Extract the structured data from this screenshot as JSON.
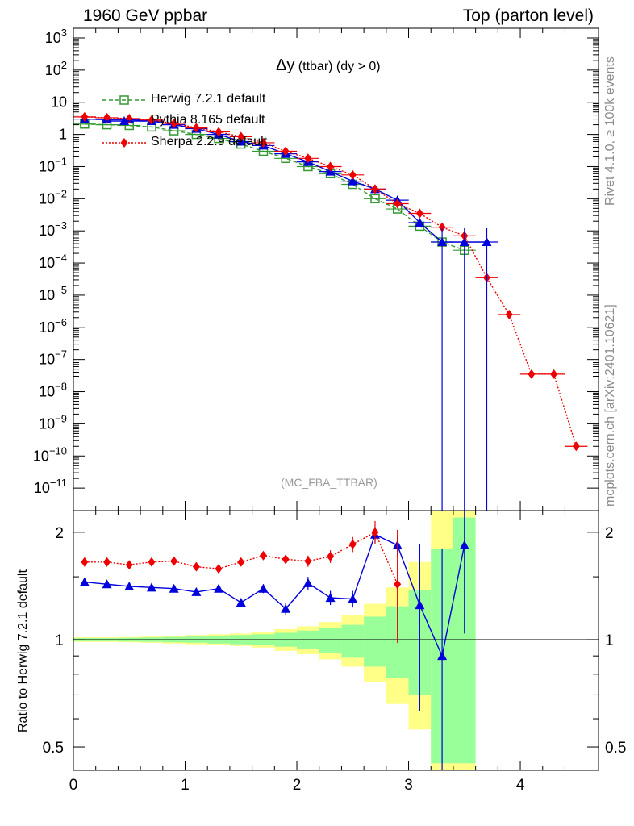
{
  "header": {
    "left": "1960 GeV ppbar",
    "right": "Top (parton level)"
  },
  "side_text": {
    "rivet": "Rivet 4.1.0, ≥ 100k events",
    "mcplots": "mcplots.cern.ch [arXiv:2401.10621]"
  },
  "plot_title": {
    "main": "Δy",
    "sub": " (ttbar) (dy > 0)"
  },
  "analysis_label": "(MC_FBA_TTBAR)",
  "ratio_ylabel": "Ratio to Herwig 7.2.1 default",
  "colors": {
    "herwig": "#339933",
    "pythia": "#0000dd",
    "sherpa": "#ee0000",
    "band_yellow": "#ffff88",
    "band_green": "#99ff99",
    "side_text": "#8c8c8c"
  },
  "legend": [
    "Herwig 7.2.1 default",
    "Pythia 8.165 default",
    "Sherpa 2.2.9 default"
  ],
  "chart_data": [
    {
      "type": "line",
      "panel": "main",
      "xlim": [
        0,
        4.7
      ],
      "ylim": [
        2e-12,
        2000
      ],
      "yscale": "log",
      "ytick_labels": [
        "10^3",
        "10^2",
        "10",
        "1",
        "10^-1",
        "10^-2",
        "10^-3",
        "10^-4",
        "10^-5",
        "10^-6",
        "10^-7",
        "10^-8",
        "10^-9",
        "10^-10",
        "10^-11"
      ],
      "bin_edges": [
        0,
        0.2,
        0.4,
        0.6,
        0.8,
        1.0,
        1.2,
        1.4,
        1.6,
        1.8,
        2.0,
        2.2,
        2.4,
        2.6,
        2.8,
        3.0,
        3.2,
        3.4,
        3.6,
        3.8,
        4.0,
        4.2,
        4.4,
        4.6
      ],
      "series": [
        {
          "name": "Herwig 7.2.1 default",
          "style": "dashed",
          "marker": "open-square",
          "x": [
            0.1,
            0.3,
            0.5,
            0.7,
            0.9,
            1.1,
            1.3,
            1.5,
            1.7,
            1.9,
            2.1,
            2.3,
            2.5,
            2.7,
            2.9,
            3.1,
            3.3,
            3.5
          ],
          "y": [
            2.1,
            2.0,
            1.9,
            1.7,
            1.3,
            1.0,
            0.75,
            0.5,
            0.3,
            0.18,
            0.1,
            0.06,
            0.028,
            0.01,
            0.0048,
            0.0014,
            0.00045,
            0.00025
          ]
        },
        {
          "name": "Pythia 8.165 default",
          "style": "solid",
          "marker": "triangle",
          "x": [
            0.1,
            0.3,
            0.5,
            0.7,
            0.9,
            1.1,
            1.3,
            1.5,
            1.7,
            1.9,
            2.1,
            2.3,
            2.5,
            2.7,
            2.9,
            3.1,
            3.3,
            3.5,
            3.7
          ],
          "y": [
            3.0,
            2.9,
            2.9,
            2.6,
            2.0,
            1.5,
            1.0,
            0.6,
            0.45,
            0.25,
            0.14,
            0.07,
            0.035,
            0.02,
            0.009,
            0.0018,
            0.00045,
            0.00045,
            0.00045
          ]
        },
        {
          "name": "Sherpa 2.2.9 default",
          "style": "dotted",
          "marker": "diamond",
          "x": [
            0.1,
            0.3,
            0.5,
            0.7,
            0.9,
            1.1,
            1.3,
            1.5,
            1.7,
            1.9,
            2.1,
            2.3,
            2.5,
            2.7,
            2.9,
            3.1,
            3.3,
            3.5,
            3.7,
            3.9,
            4.1,
            4.3,
            4.5
          ],
          "y": [
            3.5,
            3.3,
            3.1,
            2.8,
            2.2,
            1.6,
            1.2,
            0.85,
            0.55,
            0.3,
            0.18,
            0.1,
            0.055,
            0.02,
            0.007,
            0.0035,
            0.0013,
            0.0007,
            3.5e-05,
            2.5e-06,
            3.5e-08,
            3.5e-08,
            2e-10
          ]
        }
      ]
    },
    {
      "type": "line",
      "panel": "ratio",
      "title": "",
      "xlabel": "",
      "ylabel": "Ratio to Herwig 7.2.1 default",
      "xlim": [
        0,
        4.7
      ],
      "ylim": [
        0.43,
        2.3
      ],
      "yscale": "log",
      "yticks": [
        0.5,
        1,
        2
      ],
      "ytick_labels": [
        "0.5",
        "1",
        "2"
      ],
      "xticks": [
        0,
        1,
        2,
        3,
        4
      ],
      "xtick_labels": [
        "0",
        "1",
        "2",
        "3",
        "4"
      ],
      "bands": {
        "bin_edges": [
          0,
          0.2,
          0.4,
          0.6,
          0.8,
          1.0,
          1.2,
          1.4,
          1.6,
          1.8,
          2.0,
          2.2,
          2.4,
          2.6,
          2.8,
          3.0,
          3.2,
          3.4,
          3.6
        ],
        "yellow_lo": [
          0.985,
          0.985,
          0.983,
          0.98,
          0.975,
          0.97,
          0.965,
          0.96,
          0.95,
          0.93,
          0.91,
          0.88,
          0.84,
          0.76,
          0.66,
          0.56,
          0.38,
          0.38
        ],
        "yellow_hi": [
          1.015,
          1.015,
          1.017,
          1.02,
          1.025,
          1.03,
          1.035,
          1.04,
          1.05,
          1.07,
          1.09,
          1.12,
          1.17,
          1.26,
          1.4,
          1.65,
          2.4,
          2.4
        ],
        "green_lo": [
          0.99,
          0.99,
          0.988,
          0.986,
          0.983,
          0.98,
          0.975,
          0.97,
          0.965,
          0.955,
          0.94,
          0.92,
          0.89,
          0.84,
          0.78,
          0.7,
          0.45,
          0.45
        ],
        "green_hi": [
          1.01,
          1.01,
          1.012,
          1.014,
          1.017,
          1.02,
          1.025,
          1.03,
          1.035,
          1.045,
          1.06,
          1.08,
          1.1,
          1.16,
          1.24,
          1.38,
          1.8,
          2.2
        ]
      },
      "series": [
        {
          "name": "Pythia 8.165 default",
          "x": [
            0.1,
            0.3,
            0.5,
            0.7,
            0.9,
            1.1,
            1.3,
            1.5,
            1.7,
            1.9,
            2.1,
            2.3,
            2.5,
            2.7,
            2.9,
            3.1,
            3.3,
            3.5
          ],
          "y": [
            1.45,
            1.43,
            1.41,
            1.4,
            1.39,
            1.36,
            1.39,
            1.27,
            1.39,
            1.22,
            1.44,
            1.31,
            1.3,
            1.97,
            1.84,
            1.25,
            0.9,
            1.84
          ],
          "err_lo": [
            0.01,
            0.01,
            0.01,
            0.01,
            0.01,
            0.01,
            0.02,
            0.03,
            0.04,
            0.05,
            0.06,
            0.06,
            0.07,
            0.1,
            0.12,
            0.62,
            0.5,
            0.8
          ],
          "err_hi": [
            0.01,
            0.01,
            0.01,
            0.01,
            0.01,
            0.01,
            0.02,
            0.03,
            0.04,
            0.05,
            0.06,
            0.06,
            0.07,
            0.1,
            0.12,
            0.6,
            0.9,
            0.6
          ]
        },
        {
          "name": "Sherpa 2.2.9 default",
          "x": [
            0.1,
            0.3,
            0.5,
            0.7,
            0.9,
            1.1,
            1.3,
            1.5,
            1.7,
            1.9,
            2.1,
            2.3,
            2.5,
            2.7,
            2.9
          ],
          "y": [
            1.65,
            1.65,
            1.62,
            1.65,
            1.66,
            1.6,
            1.58,
            1.65,
            1.72,
            1.68,
            1.66,
            1.71,
            1.85,
            2.0,
            1.43
          ],
          "err_lo": [
            0.01,
            0.01,
            0.01,
            0.01,
            0.01,
            0.02,
            0.02,
            0.03,
            0.04,
            0.05,
            0.06,
            0.07,
            0.09,
            0.15,
            0.45
          ],
          "err_hi": [
            0.01,
            0.01,
            0.01,
            0.01,
            0.01,
            0.02,
            0.02,
            0.03,
            0.04,
            0.05,
            0.06,
            0.07,
            0.09,
            0.15,
            0.6
          ]
        }
      ]
    }
  ]
}
